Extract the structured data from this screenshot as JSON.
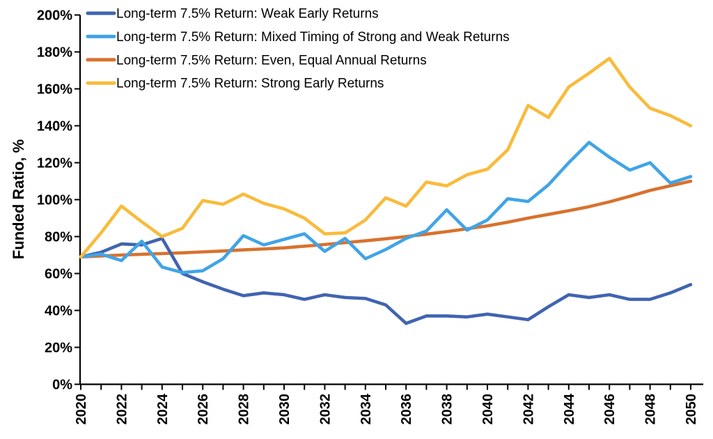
{
  "chart_data": {
    "type": "line",
    "x": [
      2020,
      2021,
      2022,
      2023,
      2024,
      2025,
      2026,
      2027,
      2028,
      2029,
      2030,
      2031,
      2032,
      2033,
      2034,
      2035,
      2036,
      2037,
      2038,
      2039,
      2040,
      2041,
      2042,
      2043,
      2044,
      2045,
      2046,
      2047,
      2048,
      2049,
      2050
    ],
    "series": [
      {
        "name": "Long-term 7.5% Return: Weak Early Returns",
        "slug": "weak-early-returns",
        "color": "#4064B0",
        "values": [
          69,
          71.5,
          76,
          75.5,
          79,
          60,
          55.5,
          51.5,
          48,
          49.5,
          48.5,
          46,
          48.5,
          47,
          46.5,
          43,
          33,
          37,
          37,
          36.5,
          38,
          36.5,
          35,
          42,
          48.5,
          47,
          48.5,
          46,
          46,
          49.5,
          54
        ]
      },
      {
        "name": "Long-term 7.5% Return: Mixed Timing of Strong and Weak Returns",
        "slug": "mixed-timing-returns",
        "color": "#41A4E6",
        "values": [
          69,
          70.5,
          67,
          77.5,
          63.5,
          60.5,
          61.5,
          68,
          80.5,
          75.5,
          78.5,
          81.5,
          72,
          79,
          68,
          73,
          79,
          83,
          94.5,
          83.5,
          89,
          100.5,
          99,
          108,
          120,
          131,
          123,
          116,
          120,
          109,
          112.5
        ]
      },
      {
        "name": "Long-term 7.5% Return: Even, Equal Annual Returns",
        "slug": "even-equal-returns",
        "color": "#D8722E",
        "values": [
          69,
          69.5,
          70,
          70.4,
          70.8,
          71.2,
          71.7,
          72.2,
          72.8,
          73.3,
          73.9,
          74.8,
          75.7,
          76.7,
          77.7,
          78.8,
          80,
          81.3,
          82.7,
          84.2,
          85.8,
          87.8,
          90,
          92,
          94,
          96.2,
          98.8,
          101.8,
          105,
          107.5,
          110
        ]
      },
      {
        "name": "Long-term 7.5% Return: Strong Early Returns",
        "slug": "strong-early-returns",
        "color": "#F9BB3B",
        "values": [
          69,
          82,
          96.5,
          88,
          80,
          84.5,
          99.5,
          97.5,
          103,
          98,
          95,
          90,
          81.5,
          82,
          89,
          101,
          96.5,
          109.5,
          107.5,
          113.5,
          116.5,
          127,
          151,
          144.5,
          161,
          168.5,
          176.5,
          161,
          149.5,
          145.5,
          140
        ]
      }
    ],
    "title": "",
    "xlabel": "",
    "ylabel": "Funded Ratio, %",
    "ylim": [
      0,
      200
    ],
    "ytick_step": 20,
    "ytick_suffix": "%",
    "xlim": [
      2020,
      2050
    ],
    "xlabel_every": 2,
    "grid": false,
    "legend_position": "top-left",
    "axis_color": "#000000",
    "background": "#ffffff"
  }
}
